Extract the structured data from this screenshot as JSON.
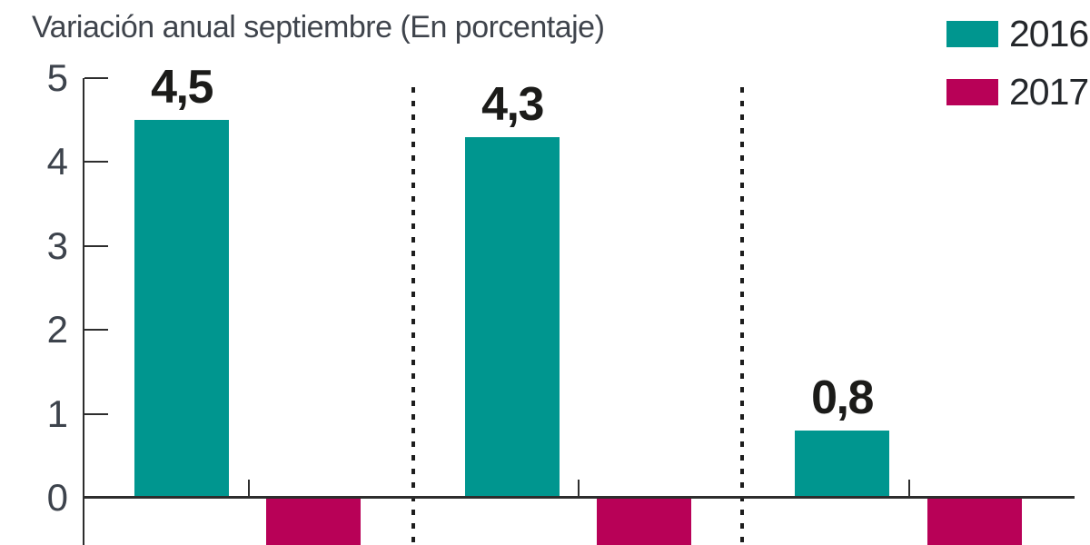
{
  "title": "Variación anual septiembre (En porcentaje)",
  "legend": {
    "items": [
      {
        "label": "2016",
        "color": "#00968F"
      },
      {
        "label": "2017",
        "color": "#B80157"
      }
    ]
  },
  "y_axis": {
    "ticks": [
      {
        "label": "5",
        "value": 5
      },
      {
        "label": "4",
        "value": 4
      },
      {
        "label": "3",
        "value": 3
      },
      {
        "label": "2",
        "value": 2
      },
      {
        "label": "1",
        "value": 1
      },
      {
        "label": "0",
        "value": 0
      }
    ]
  },
  "chart_data": {
    "type": "bar",
    "title": "Variación anual septiembre (En porcentaje)",
    "categories": [
      "",
      "",
      ""
    ],
    "categories_note": "category axis labels are cropped below the visible area",
    "series": [
      {
        "name": "2016",
        "color": "#00968F",
        "values": [
          4.5,
          4.3,
          0.8
        ],
        "value_labels": [
          "4,5",
          "4,3",
          "0,8"
        ]
      },
      {
        "name": "2017",
        "color": "#B80157",
        "values": [
          null,
          null,
          null
        ],
        "note": "negative bars extend below the cropped bottom edge; values not visible"
      }
    ],
    "yticks": [
      0,
      1,
      2,
      3,
      4,
      5
    ],
    "ylim_visible": [
      0,
      5
    ],
    "grid": false,
    "legend_position": "top-right",
    "group_separators": "dotted vertical lines between category groups"
  }
}
